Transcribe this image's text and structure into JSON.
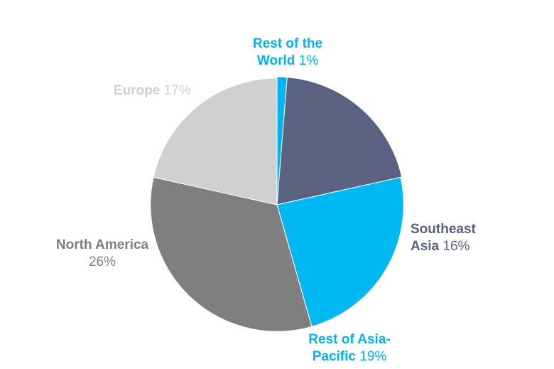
{
  "chart_data": {
    "type": "pie",
    "slices": [
      {
        "key": "rest_of_world",
        "name_lines": [
          "Rest of the",
          "World"
        ],
        "value": 1,
        "pct_label": "1%",
        "color": "#00b4f0",
        "label_color": "#00b4f0"
      },
      {
        "key": "southeast_asia",
        "name_lines": [
          "Southeast",
          "Asia"
        ],
        "value": 16,
        "pct_label": "16%",
        "color": "#5a6282",
        "label_color": "#5a6282"
      },
      {
        "key": "rest_of_asia_pacific",
        "name_lines": [
          "Rest of Asia-",
          "Pacific"
        ],
        "value": 19,
        "pct_label": "19%",
        "color": "#00b9f2",
        "label_color": "#00b4f0"
      },
      {
        "key": "north_america",
        "name_lines": [
          "North America"
        ],
        "value": 26,
        "pct_label": "26%",
        "color": "#7f7f7f",
        "label_color": "#7f7f7f"
      },
      {
        "key": "europe",
        "name_lines": [
          "Europe"
        ],
        "value": 17,
        "pct_label": "17%",
        "color": "#d0d0d0",
        "label_color": "#cfcfcf"
      }
    ],
    "start_angle_deg": 0,
    "direction": "clockwise",
    "variable_radius": true,
    "radius_by_key": {
      "rest_of_world": 1.0,
      "southeast_asia": 1.0,
      "rest_of_asia_pacific": 0.99,
      "north_america": 0.99,
      "europe": 0.99
    },
    "legend": "none",
    "title": ""
  }
}
